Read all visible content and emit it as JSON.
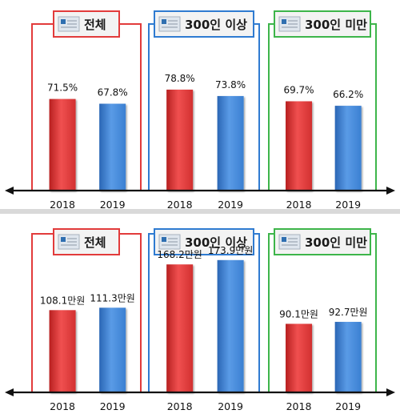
{
  "colors": {
    "red_group": "#e23b3b",
    "blue_group": "#2f7bd1",
    "green_group": "#3db54a",
    "bar_2018": "#d93434",
    "bar_2019": "#3f86d6"
  },
  "chart_data": [
    {
      "type": "bar",
      "unit": "%",
      "groups": [
        {
          "label": "전체",
          "values": [
            {
              "year": "2018",
              "value": 71.5,
              "label": "71.5%"
            },
            {
              "year": "2019",
              "value": 67.8,
              "label": "67.8%"
            }
          ]
        },
        {
          "label": "300인 이상",
          "values": [
            {
              "year": "2018",
              "value": 78.8,
              "label": "78.8%"
            },
            {
              "year": "2019",
              "value": 73.8,
              "label": "73.8%"
            }
          ]
        },
        {
          "label": "300인 미만",
          "values": [
            {
              "year": "2018",
              "value": 69.7,
              "label": "69.7%"
            },
            {
              "year": "2019",
              "value": 66.2,
              "label": "66.2%"
            }
          ]
        }
      ]
    },
    {
      "type": "bar",
      "unit": "만원",
      "groups": [
        {
          "label": "전체",
          "values": [
            {
              "year": "2018",
              "value": 108.1,
              "label": "108.1만원"
            },
            {
              "year": "2019",
              "value": 111.3,
              "label": "111.3만원"
            }
          ]
        },
        {
          "label": "300인 이상",
          "values": [
            {
              "year": "2018",
              "value": 168.2,
              "label": "168.2만원"
            },
            {
              "year": "2019",
              "value": 173.9,
              "label": "173.9만원"
            }
          ]
        },
        {
          "label": "300인 미만",
          "values": [
            {
              "year": "2018",
              "value": 90.1,
              "label": "90.1만원"
            },
            {
              "year": "2019",
              "value": 92.7,
              "label": "92.7만원"
            }
          ]
        }
      ]
    }
  ]
}
